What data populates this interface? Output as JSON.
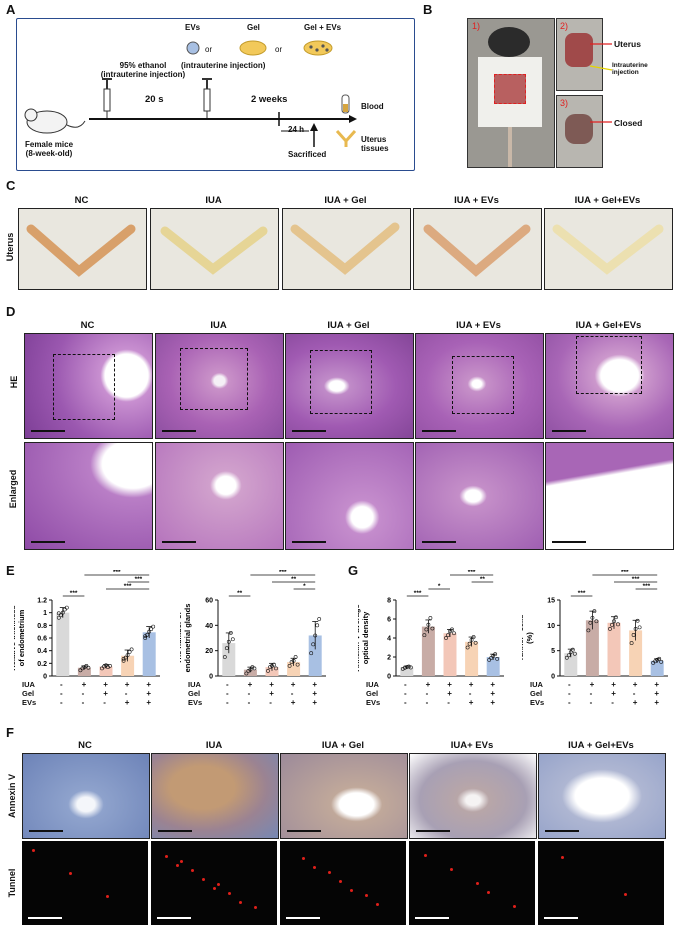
{
  "panels": {
    "A": "A",
    "B": "B",
    "C": "C",
    "D": "D",
    "E": "E",
    "F": "F",
    "G": "G"
  },
  "schematic": {
    "ethanol_line1": "95% ethanol",
    "ethanol_line2": "(intrauterine injection)",
    "evs": "EVs",
    "or1": "or",
    "gel": "Gel",
    "or2": "or",
    "gel_evs": "Gel + EVs",
    "treat_injection": "(intrauterine injection)",
    "time1": "20 s",
    "time2": "2 weeks",
    "time3": "24 h",
    "sacrificed": "Sacrificed",
    "mouse_line1": "Female mice",
    "mouse_line2": "(8-week-old)",
    "blood": "Blood",
    "uterus_tissues": "Uterus tissues"
  },
  "panelB": {
    "n1": "1)",
    "n2": "2)",
    "n3": "3)",
    "uterus": "Uterus",
    "injection_line1": "Intrauterine",
    "injection_line2": "injection",
    "closed": "Closed"
  },
  "groups": [
    "NC",
    "IUA",
    "IUA + Gel",
    "IUA + EVs",
    "IUA + Gel+EVs"
  ],
  "groupsF": [
    "NC",
    "IUA",
    "IUA + Gel",
    "IUA+ EVs",
    "IUA + Gel+EVs"
  ],
  "rowlabels": {
    "uterus": "Uterus",
    "he": "HE",
    "enlarged": "Enlarged",
    "annexin": "Annexin V",
    "tunnel": "Tunnel"
  },
  "treatment_rows": {
    "labels": [
      "IUA",
      "Gel",
      "EVs"
    ],
    "IUA": [
      "-",
      "+",
      "+",
      "+",
      "+"
    ],
    "Gel": [
      "-",
      "-",
      "+",
      "-",
      "+"
    ],
    "EVs": [
      "-",
      "-",
      "-",
      "+",
      "+"
    ]
  },
  "colors": {
    "nc": "#d9d9d9",
    "iua": "#c8aca6",
    "gel": "#f3c7b8",
    "evs": "#f7d3b5",
    "gelevs": "#a8c0e3",
    "frame": "#2a4c8f"
  },
  "chart_data": [
    {
      "type": "bar",
      "ylabel": "Relative thickness of endometrium",
      "ylim": [
        0,
        1.2
      ],
      "ticks": [
        0.0,
        0.2,
        0.4,
        0.6,
        0.8,
        1.0,
        1.2
      ],
      "values": [
        1.0,
        0.13,
        0.15,
        0.32,
        0.69
      ],
      "errors": [
        0.08,
        0.03,
        0.03,
        0.09,
        0.09
      ],
      "points": [
        [
          0.92,
          0.96,
          1.0,
          1.05,
          1.08,
          0.99
        ],
        [
          0.09,
          0.12,
          0.14,
          0.16,
          0.13
        ],
        [
          0.12,
          0.15,
          0.17,
          0.14,
          0.16
        ],
        [
          0.24,
          0.29,
          0.33,
          0.38,
          0.42,
          0.27
        ],
        [
          0.6,
          0.65,
          0.7,
          0.74,
          0.78,
          0.63
        ]
      ],
      "sig": [
        {
          "a": 0,
          "b": 1,
          "label": "***"
        },
        {
          "a": 2,
          "b": 4,
          "label": "***"
        },
        {
          "a": 3,
          "b": 4,
          "label": "***"
        },
        {
          "a": 1,
          "b": 4,
          "label": "***"
        }
      ]
    },
    {
      "type": "bar",
      "ylabel": "The number of endometrial glands",
      "ylim": [
        0,
        60
      ],
      "ticks": [
        0,
        20,
        40,
        60
      ],
      "values": [
        26,
        5,
        7,
        11,
        32
      ],
      "errors": [
        8,
        2,
        3,
        3,
        11
      ],
      "points": [
        [
          15,
          22,
          27,
          34,
          29
        ],
        [
          2,
          4,
          5,
          7,
          6
        ],
        [
          4,
          7,
          8,
          9,
          6
        ],
        [
          8,
          11,
          12,
          15,
          9
        ],
        [
          18,
          25,
          32,
          40,
          45
        ]
      ],
      "sig": [
        {
          "a": 0,
          "b": 1,
          "label": "**"
        },
        {
          "a": 3,
          "b": 4,
          "label": "*"
        },
        {
          "a": 2,
          "b": 4,
          "label": "**"
        },
        {
          "a": 1,
          "b": 4,
          "label": "***"
        }
      ]
    },
    {
      "type": "bar",
      "ylabel": "Annexin Ⅴ average optical density",
      "ylim": [
        0,
        8
      ],
      "ticks": [
        0,
        2,
        4,
        6,
        8
      ],
      "values": [
        0.9,
        5.2,
        4.5,
        3.6,
        2.0
      ],
      "errors": [
        0.15,
        0.7,
        0.4,
        0.5,
        0.3
      ],
      "points": [
        [
          0.75,
          0.85,
          0.95,
          1.0,
          0.9
        ],
        [
          4.3,
          4.9,
          5.4,
          6.1,
          5.0
        ],
        [
          4.0,
          4.3,
          4.7,
          4.9,
          4.5
        ],
        [
          3.0,
          3.4,
          3.8,
          4.1,
          3.5
        ],
        [
          1.7,
          1.9,
          2.1,
          2.3,
          1.8
        ]
      ],
      "sig": [
        {
          "a": 0,
          "b": 1,
          "label": "***"
        },
        {
          "a": 1,
          "b": 2,
          "label": "*"
        },
        {
          "a": 3,
          "b": 4,
          "label": "**"
        },
        {
          "a": 2,
          "b": 4,
          "label": "***"
        },
        {
          "a": 1,
          "b": 4,
          "label": "***"
        }
      ]
    },
    {
      "type": "bar",
      "ylabel": "Tunnel⁺ cells (%)",
      "ylim": [
        0,
        15
      ],
      "ticks": [
        0,
        5,
        10,
        15
      ],
      "values": [
        4.5,
        11,
        10.5,
        9,
        3
      ],
      "errors": [
        0.8,
        1.8,
        1.2,
        2.0,
        0.4
      ],
      "points": [
        [
          3.6,
          4.1,
          4.7,
          5.2,
          4.4
        ],
        [
          9,
          10.5,
          11.5,
          12.8,
          10.8
        ],
        [
          9.3,
          10.1,
          10.8,
          11.6,
          10.2
        ],
        [
          6.5,
          8.1,
          9.3,
          10.9,
          9.6
        ],
        [
          2.6,
          2.9,
          3.2,
          3.4,
          2.8
        ]
      ],
      "sig": [
        {
          "a": 0,
          "b": 1,
          "label": "***"
        },
        {
          "a": 3,
          "b": 4,
          "label": "***"
        },
        {
          "a": 2,
          "b": 4,
          "label": "***"
        },
        {
          "a": 1,
          "b": 4,
          "label": "***"
        }
      ]
    }
  ]
}
